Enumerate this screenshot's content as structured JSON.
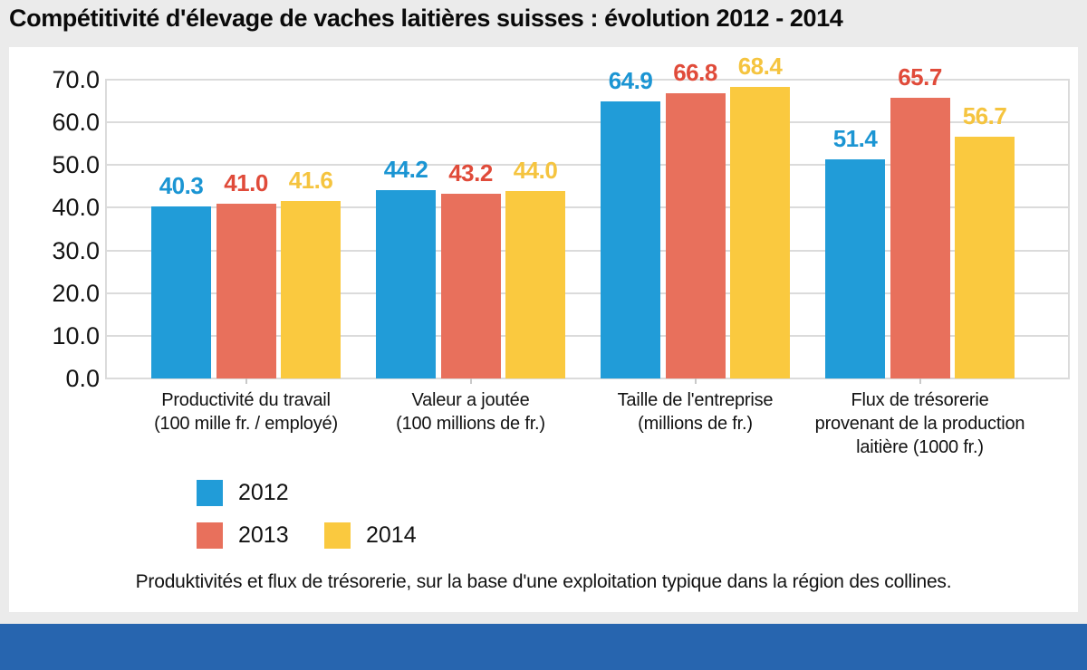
{
  "title": "Compétitivité d'élevage de vaches laitières suisses : évolution 2012 - 2014",
  "caption": "Produktivités et flux de trésorerie, sur la base d'une exploitation typique dans la région des collines.",
  "chart_data": {
    "type": "bar",
    "title": "Compétitivité d'élevage de vaches laitières suisses : évolution 2012 - 2014",
    "xlabel": "",
    "ylabel": "",
    "ylim": [
      0,
      70
    ],
    "ytick_step": 10,
    "ytick_labels": [
      "0.0",
      "10.0",
      "20.0",
      "30.0",
      "40.0",
      "50.0",
      "60.0",
      "70.0"
    ],
    "grid": true,
    "legend_position": "bottom-left",
    "categories": [
      {
        "lines": [
          "Productivité du travail",
          "(100 mille fr. / employé)"
        ]
      },
      {
        "lines": [
          "Valeur a joutée",
          "(100 millions de fr.)"
        ]
      },
      {
        "lines": [
          "Taille de l'entreprise",
          "(millions de fr.)"
        ]
      },
      {
        "lines": [
          "Flux de trésorerie",
          "provenant de la production",
          "laitière (1000 fr.)"
        ]
      }
    ],
    "series": [
      {
        "name": "2012",
        "color": "#219CD8",
        "label_color": "#1B95D3",
        "values": [
          40.3,
          44.2,
          64.9,
          51.4
        ]
      },
      {
        "name": "2013",
        "color": "#E8705C",
        "label_color": "#E04B3A",
        "values": [
          41.0,
          43.2,
          66.8,
          65.7
        ]
      },
      {
        "name": "2014",
        "color": "#FAC93F",
        "label_color": "#F5C43F",
        "values": [
          41.6,
          44.0,
          68.4,
          56.7
        ]
      }
    ]
  },
  "colors": {
    "page_background": "#EBEBEB",
    "card_background": "#FFFFFF",
    "grid": "#DBDBDB",
    "text": "#121212",
    "footer_band": "#2765AF"
  }
}
